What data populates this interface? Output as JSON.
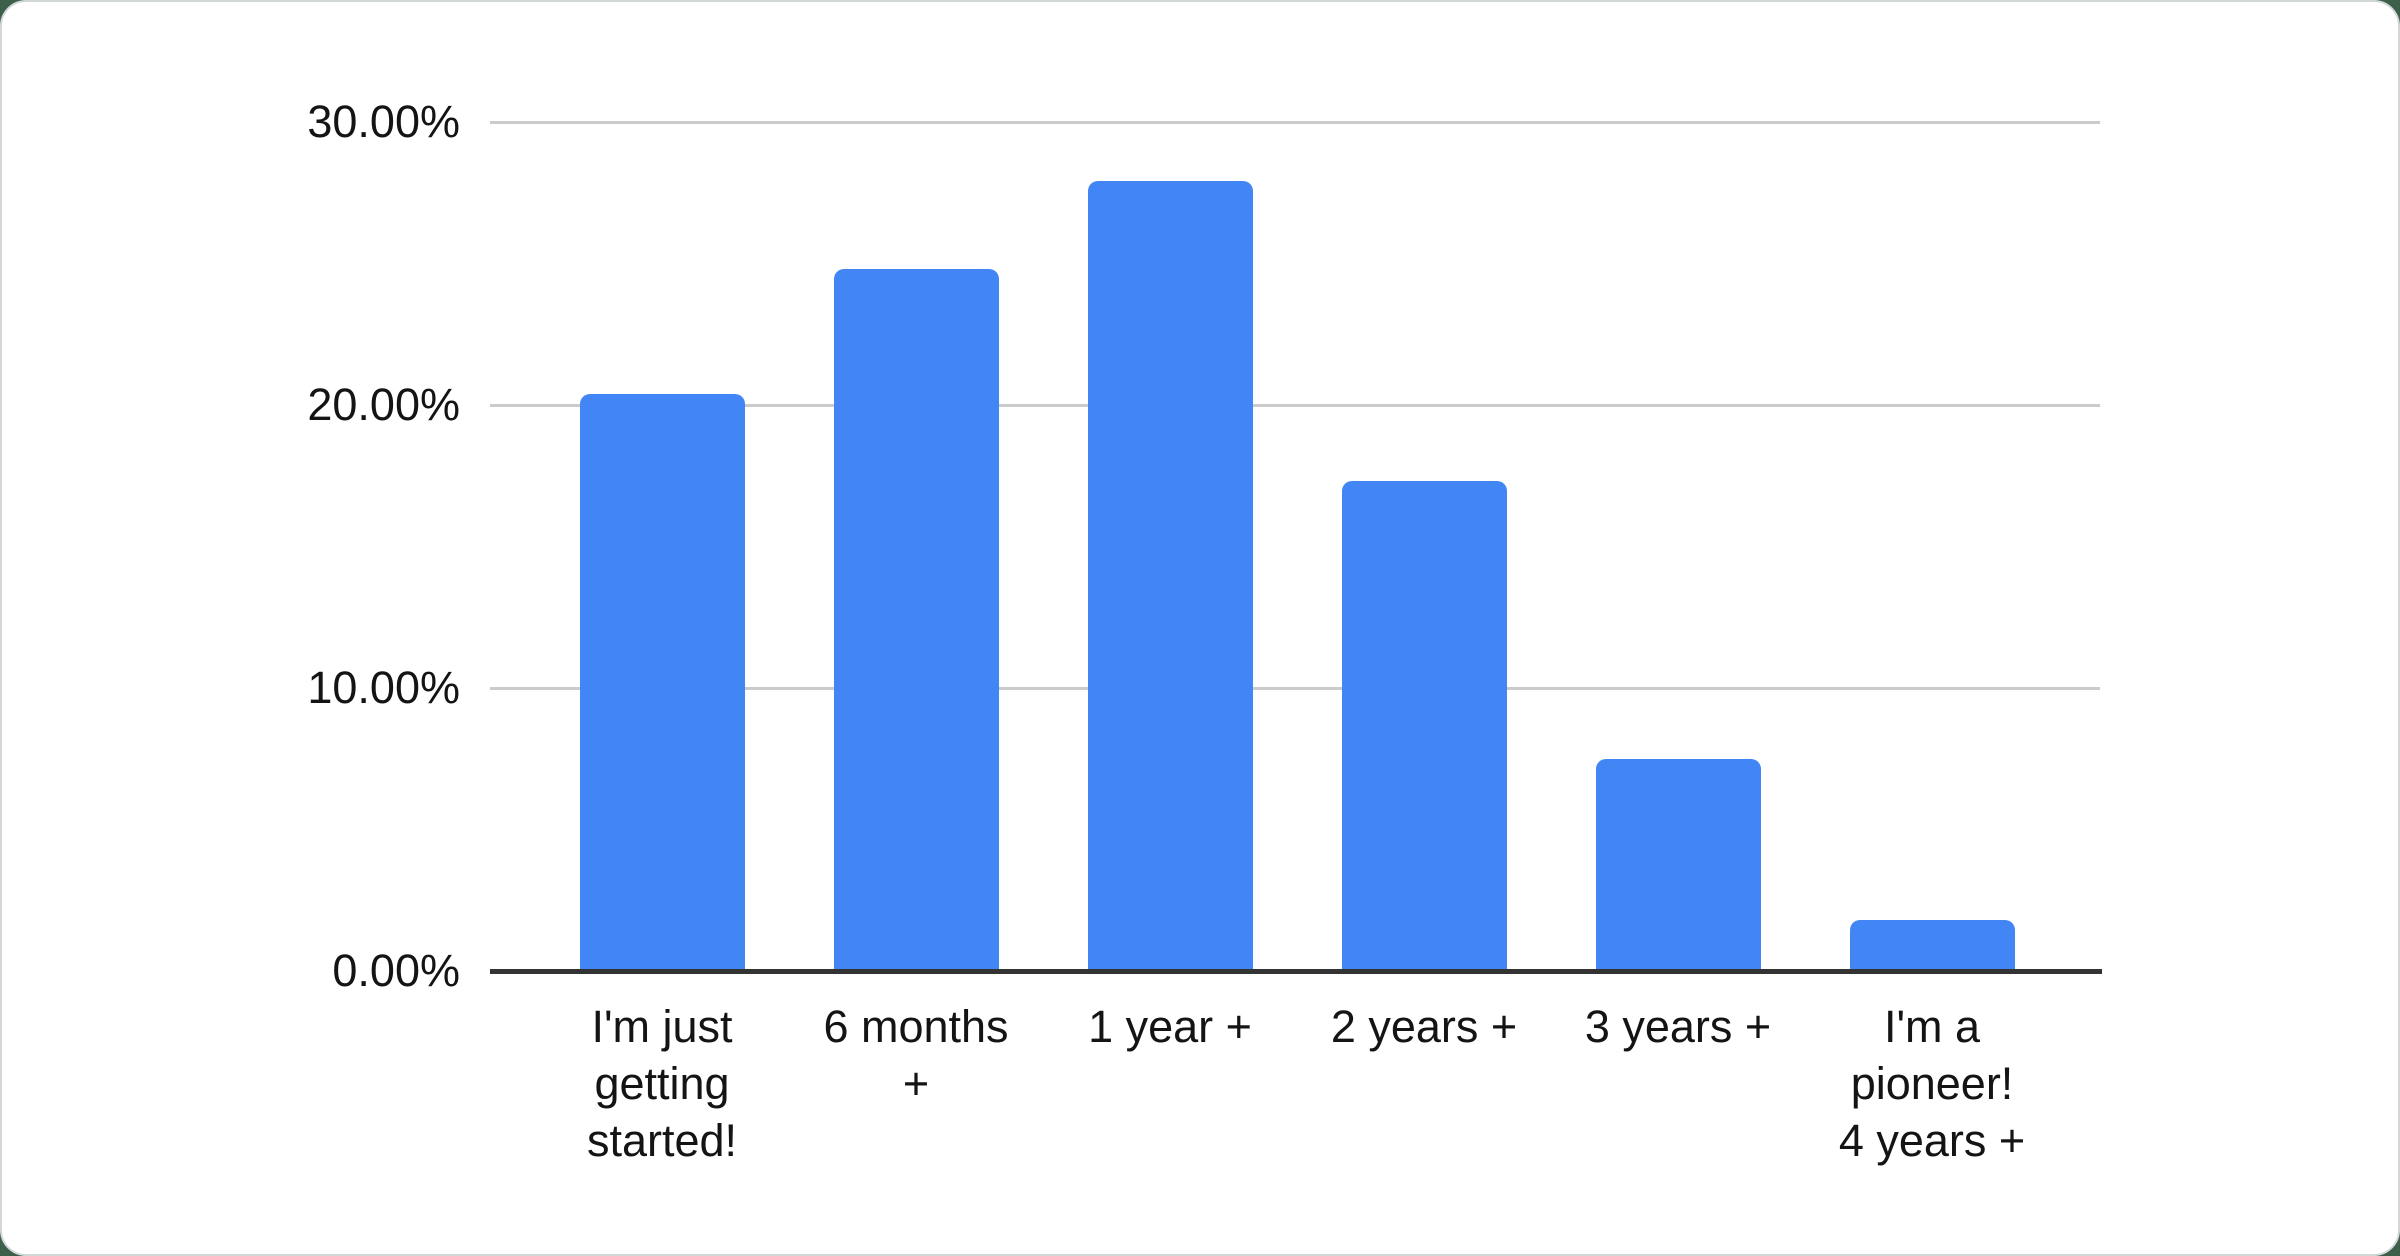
{
  "page": {
    "background_color": "#3d5f4a",
    "card_background": "#ffffff",
    "card_border_color": "#d2d8d5"
  },
  "chart_data": {
    "type": "bar",
    "title": "",
    "xlabel": "",
    "ylabel": "",
    "categories": [
      "I'm just getting started!",
      "6 months +",
      "1 year +",
      "2 years +",
      "3 years +",
      "I'm a pioneer! 4 years +"
    ],
    "category_line_breaks": [
      [
        "I'm just",
        "getting",
        "started!"
      ],
      [
        "6 months",
        "+"
      ],
      [
        "1 year +"
      ],
      [
        "2 years +"
      ],
      [
        "3 years +"
      ],
      [
        "I'm a",
        "pioneer!",
        "4 years +"
      ]
    ],
    "values": [
      20.4,
      24.8,
      27.9,
      17.3,
      7.5,
      1.8
    ],
    "value_unit": "%",
    "ylim": [
      0,
      30
    ],
    "y_ticks": [
      "30.00%",
      "20.00%",
      "10.00%",
      "0.00%"
    ],
    "y_tick_values": [
      30,
      20,
      10,
      0
    ],
    "grid": true,
    "legend": "none",
    "series_color": "#4285f4",
    "gridline_color": "#cbcbcb",
    "axis_line_color": "#333333",
    "label_color": "#141414"
  }
}
